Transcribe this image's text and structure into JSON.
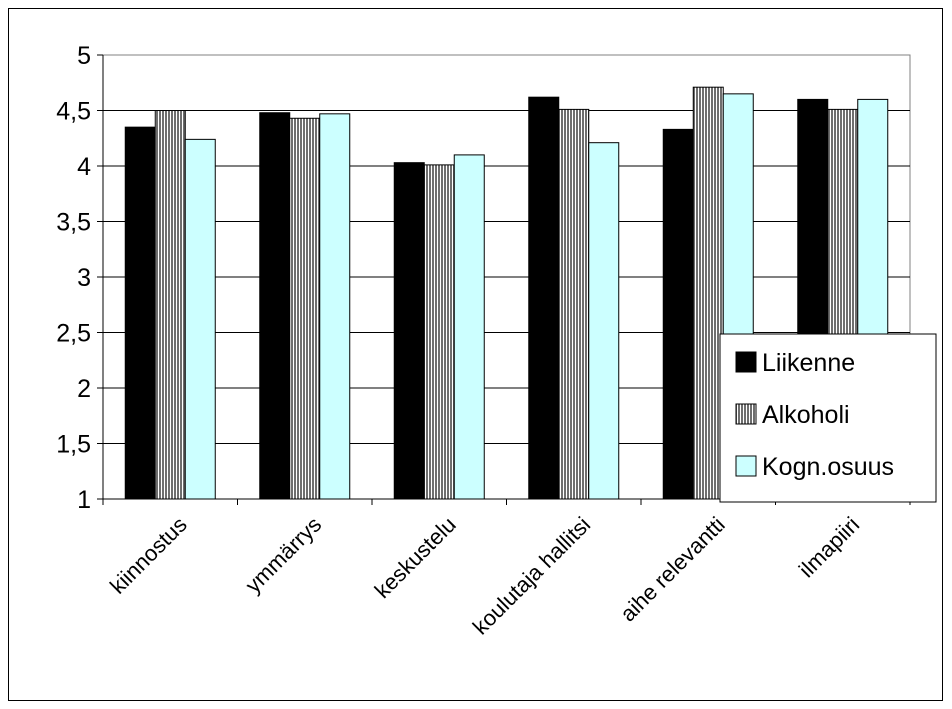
{
  "chart_data": {
    "type": "bar",
    "title": "",
    "xlabel": "",
    "ylabel": "",
    "categories": [
      "kiinnostus",
      "ymmärrys",
      "keskustelu",
      "koulutaja hallitsi",
      "aihe relevantti",
      "ilmapiiri"
    ],
    "series": [
      {
        "name": "Liikenne",
        "values": [
          4.35,
          4.48,
          4.03,
          4.62,
          4.33,
          4.6
        ],
        "color": "#000000",
        "pattern": "solid"
      },
      {
        "name": "Alkoholi",
        "values": [
          4.5,
          4.43,
          4.01,
          4.51,
          4.71,
          4.51
        ],
        "color": "#808080",
        "pattern": "vertical-stripes"
      },
      {
        "name": "Kogn.osuus",
        "values": [
          4.24,
          4.47,
          4.1,
          4.21,
          4.65,
          4.6
        ],
        "color": "#ccffff",
        "pattern": "solid"
      }
    ],
    "ylim": [
      1,
      5
    ],
    "yticks": [
      "1",
      "1,5",
      "2",
      "2,5",
      "3",
      "3,5",
      "4",
      "4,5",
      "5"
    ],
    "grid": true,
    "legend_position": "right"
  }
}
